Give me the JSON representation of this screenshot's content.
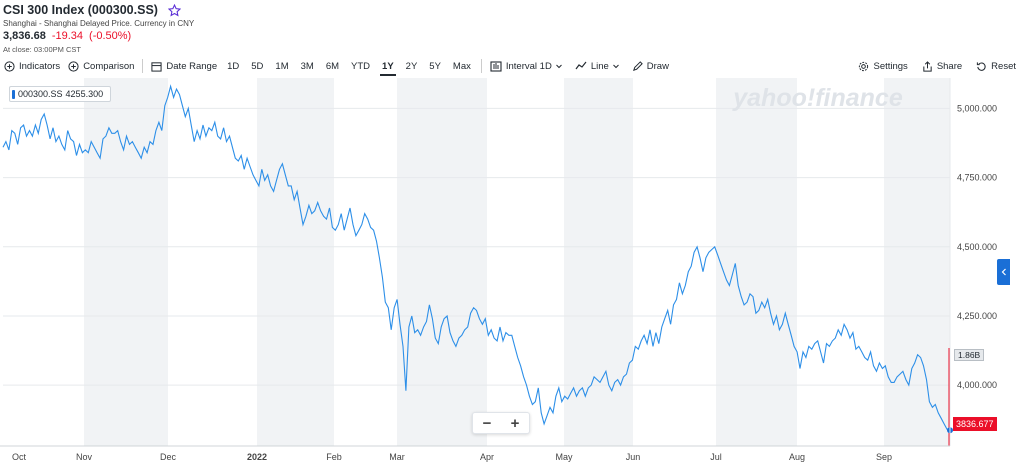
{
  "header": {
    "title": "CSI 300 Index (000300.SS)",
    "subtitle": "Shanghai - Shanghai Delayed Price. Currency in CNY",
    "price": "3,836.68",
    "change": "-19.34",
    "change_pct": "(-0.50%)",
    "close_time": "At close: 03:00PM CST"
  },
  "toolbar": {
    "indicators": "Indicators",
    "comparison": "Comparison",
    "date_range": "Date Range",
    "ranges": [
      "1D",
      "5D",
      "1M",
      "3M",
      "6M",
      "YTD",
      "1Y",
      "2Y",
      "5Y",
      "Max"
    ],
    "active_range": "1Y",
    "interval_label": "Interval",
    "interval_value": "1D",
    "line": "Line",
    "draw": "Draw",
    "settings": "Settings",
    "share": "Share",
    "reset": "Reset"
  },
  "watermark": "yahoo!finance",
  "series_tag": {
    "symbol": "000300.SS",
    "value": "4255.300"
  },
  "volume_tag": "1.86B",
  "last_tag": "3836.677",
  "colors": {
    "line": "#2d8fe8",
    "up": "#eb0f29",
    "accent": "#1a6fd6"
  },
  "chart_data": {
    "type": "line",
    "x_labels": [
      "Oct",
      "Nov",
      "Dec",
      "2022",
      "Feb",
      "Mar",
      "Apr",
      "May",
      "Jun",
      "Jul",
      "Aug",
      "Sep"
    ],
    "y_ticks": [
      "5,000.000",
      "4,750.000",
      "4,500.000",
      "4,250.000",
      "4,000.000"
    ],
    "ylim": [
      3780,
      5110
    ],
    "series": [
      {
        "values": [
          4860,
          4880,
          4850,
          4920,
          4910,
          4870,
          4930,
          4940,
          4900,
          4920,
          4900,
          4940,
          4910,
          4960,
          4980,
          4940,
          4890,
          4930,
          4880,
          4900,
          4870,
          4850,
          4920,
          4890,
          4880,
          4830,
          4870,
          4840,
          4850,
          4840,
          4880,
          4860,
          4840,
          4820,
          4890,
          4900,
          4930,
          4910,
          4910,
          4920,
          4880,
          4850,
          4900,
          4870,
          4880,
          4860,
          4840,
          4820,
          4860,
          4840,
          4880,
          4870,
          4920,
          4950,
          4920,
          5010,
          5040,
          5080,
          5040,
          5070,
          5050,
          5010,
          4970,
          5000,
          4940,
          4880,
          4920,
          4890,
          4940,
          4900,
          4930,
          4920,
          4950,
          4900,
          4890,
          4930,
          4880,
          4900,
          4860,
          4820,
          4810,
          4830,
          4780,
          4820,
          4790,
          4760,
          4740,
          4720,
          4780,
          4740,
          4760,
          4720,
          4700,
          4740,
          4780,
          4800,
          4760,
          4720,
          4720,
          4670,
          4700,
          4640,
          4580,
          4610,
          4650,
          4620,
          4630,
          4660,
          4630,
          4610,
          4600,
          4640,
          4570,
          4560,
          4580,
          4620,
          4560,
          4600,
          4640,
          4580,
          4540,
          4560,
          4580,
          4620,
          4600,
          4570,
          4560,
          4520,
          4460,
          4390,
          4300,
          4280,
          4200,
          4280,
          4310,
          4220,
          4140,
          3980,
          4210,
          4250,
          4190,
          4200,
          4180,
          4210,
          4230,
          4290,
          4240,
          4170,
          4150,
          4210,
          4240,
          4250,
          4190,
          4160,
          4140,
          4170,
          4180,
          4200,
          4210,
          4260,
          4280,
          4270,
          4240,
          4220,
          4240,
          4180,
          4200,
          4170,
          4160,
          4210,
          4160,
          4190,
          4180,
          4180,
          4140,
          4100,
          4070,
          4030,
          4000,
          3960,
          3930,
          3940,
          3990,
          3900,
          3860,
          3890,
          3920,
          3900,
          3960,
          3990,
          3940,
          3960,
          3950,
          3970,
          3990,
          3960,
          3980,
          3990,
          3960,
          3990,
          4000,
          4030,
          4020,
          4010,
          4030,
          4050,
          4000,
          3980,
          4010,
          4020,
          4000,
          4030,
          4040,
          4080,
          4090,
          4140,
          4130,
          4160,
          4180,
          4150,
          4200,
          4140,
          4190,
          4150,
          4210,
          4240,
          4270,
          4220,
          4290,
          4310,
          4370,
          4330,
          4360,
          4410,
          4430,
          4480,
          4500,
          4460,
          4410,
          4460,
          4480,
          4490,
          4500,
          4470,
          4440,
          4410,
          4380,
          4360,
          4400,
          4440,
          4360,
          4320,
          4290,
          4300,
          4330,
          4320,
          4260,
          4270,
          4300,
          4280,
          4310,
          4260,
          4220,
          4250,
          4200,
          4220,
          4260,
          4220,
          4180,
          4140,
          4120,
          4060,
          4120,
          4100,
          4140,
          4130,
          4150,
          4160,
          4120,
          4080,
          4150,
          4140,
          4160,
          4170,
          4200,
          4180,
          4220,
          4200,
          4170,
          4190,
          4130,
          4140,
          4120,
          4100,
          4090,
          4120,
          4070,
          4050,
          4080,
          4060,
          4070,
          4030,
          4010,
          4010,
          4030,
          4040,
          4050,
          4020,
          4000,
          4060,
          4080,
          4110,
          4100,
          4070,
          4020,
          3940,
          3920,
          3930,
          3900,
          3880,
          3860,
          3840,
          3837
        ]
      }
    ]
  }
}
